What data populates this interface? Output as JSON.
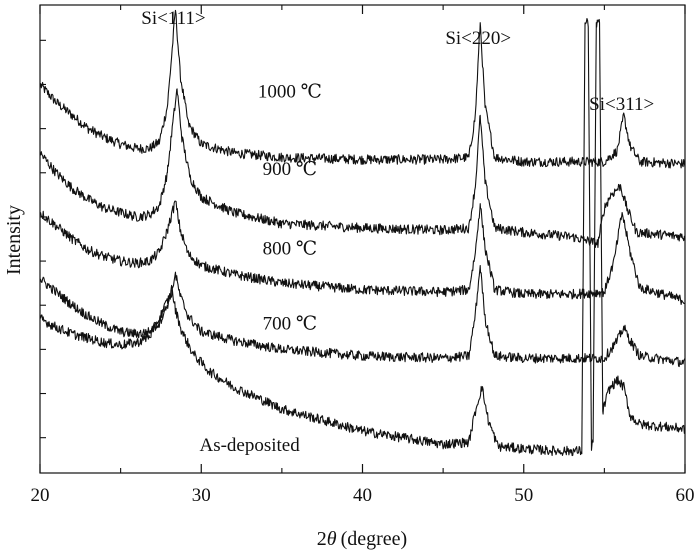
{
  "chart_data": {
    "type": "line",
    "xlabel": "2θ (degree)",
    "xlabel_prefix": "2",
    "xlabel_symbol": "θ",
    "xlabel_unit": "(degree)",
    "ylabel": "Intensity",
    "xlim": [
      20,
      60
    ],
    "xticks": [
      "20",
      "30",
      "40",
      "50",
      "60"
    ],
    "legend": "none",
    "grid": false,
    "annotations": [
      {
        "text": "Si<111>",
        "x": 28.4
      },
      {
        "text": "Si<220>",
        "x": 47.3
      },
      {
        "text": "Si<311>",
        "x": 56.2
      }
    ],
    "peak_positions": [
      28.4,
      47.3,
      56.2
    ],
    "series": [
      {
        "name": "1000 ℃",
        "x": [
          20,
          21,
          22,
          23,
          24,
          25,
          26,
          26.8,
          27.4,
          27.9,
          28.2,
          28.4,
          28.7,
          29.2,
          30,
          32,
          35,
          40,
          45,
          46.6,
          47.0,
          47.3,
          47.6,
          48.2,
          50,
          53,
          55,
          55.8,
          56.2,
          56.6,
          57.2,
          60
        ],
        "y": [
          10.6,
          10.2,
          9.9,
          9.6,
          9.4,
          9.25,
          9.15,
          9.15,
          9.3,
          10.1,
          11.4,
          12.3,
          10.8,
          9.7,
          9.25,
          9.05,
          8.95,
          8.9,
          8.9,
          8.95,
          9.9,
          12.0,
          10.1,
          8.95,
          8.85,
          8.85,
          8.85,
          9.1,
          9.9,
          9.2,
          8.85,
          8.8
        ]
      },
      {
        "name": "900 ℃",
        "x": [
          20,
          21,
          22,
          23,
          24,
          25,
          26,
          26.8,
          27.4,
          27.9,
          28.2,
          28.5,
          28.8,
          29.3,
          30,
          32,
          35,
          40,
          45,
          46.6,
          47.0,
          47.3,
          47.6,
          48.2,
          50,
          53,
          54.6,
          55.0,
          55.4,
          56.0,
          56.4,
          57.0,
          60
        ],
        "y": [
          9.05,
          8.6,
          8.25,
          8.0,
          7.8,
          7.7,
          7.6,
          7.65,
          7.85,
          8.6,
          9.6,
          10.5,
          9.4,
          8.5,
          8.05,
          7.7,
          7.45,
          7.35,
          7.3,
          7.35,
          8.3,
          9.9,
          8.4,
          7.35,
          7.25,
          7.15,
          7.0,
          7.8,
          8.1,
          8.3,
          7.8,
          7.25,
          7.15
        ]
      },
      {
        "name": "800 ℃",
        "x": [
          20,
          21,
          22,
          23,
          24,
          25,
          26,
          26.8,
          27.4,
          27.9,
          28.2,
          28.4,
          28.7,
          29.2,
          30,
          32,
          35,
          40,
          45,
          46.6,
          47.0,
          47.3,
          47.6,
          48.2,
          50,
          53,
          55,
          55.6,
          56.1,
          56.6,
          57.2,
          60
        ],
        "y": [
          7.7,
          7.4,
          7.1,
          6.85,
          6.7,
          6.6,
          6.55,
          6.6,
          6.8,
          7.3,
          7.7,
          7.95,
          7.3,
          6.75,
          6.5,
          6.3,
          6.1,
          5.95,
          5.9,
          5.95,
          6.8,
          7.9,
          6.9,
          5.95,
          5.85,
          5.85,
          5.9,
          6.6,
          7.7,
          6.8,
          6.0,
          5.7
        ]
      },
      {
        "name": "700 ℃",
        "x": [
          20,
          21,
          22,
          23,
          24,
          25,
          26,
          26.8,
          27.4,
          27.9,
          28.2,
          28.4,
          28.7,
          29.2,
          30,
          32,
          35,
          40,
          45,
          46.6,
          47.0,
          47.3,
          47.6,
          48.2,
          50,
          53,
          55,
          55.8,
          56.2,
          56.6,
          57.2,
          60
        ],
        "y": [
          6.2,
          5.9,
          5.6,
          5.35,
          5.15,
          5.0,
          4.95,
          5.0,
          5.2,
          5.6,
          6.0,
          6.3,
          5.8,
          5.35,
          5.0,
          4.8,
          4.6,
          4.45,
          4.4,
          4.45,
          5.4,
          6.5,
          5.3,
          4.45,
          4.4,
          4.4,
          4.4,
          4.8,
          5.1,
          4.8,
          4.45,
          4.3
        ]
      },
      {
        "name": "As-deposited",
        "x": [
          20,
          21,
          22,
          23,
          24,
          25,
          26,
          26.8,
          27.4,
          27.9,
          28.2,
          28.4,
          28.8,
          29.5,
          30.5,
          32,
          35,
          40,
          45,
          46.6,
          47.0,
          47.4,
          47.8,
          48.4,
          50,
          52,
          53.6,
          53.8,
          54.0,
          54.2,
          54.3,
          54.5,
          54.7,
          54.9,
          55.3,
          55.8,
          56.2,
          56.6,
          57.2,
          60
        ],
        "y": [
          5.3,
          5.1,
          4.95,
          4.85,
          4.75,
          4.7,
          4.75,
          4.9,
          5.3,
          5.7,
          5.9,
          5.5,
          5.0,
          4.5,
          4.1,
          3.75,
          3.25,
          2.75,
          2.45,
          2.5,
          3.2,
          3.75,
          3.0,
          2.4,
          2.35,
          2.3,
          2.3,
          12.0,
          12.0,
          2.3,
          2.5,
          12.0,
          12.0,
          3.2,
          3.7,
          3.9,
          3.75,
          3.1,
          2.9,
          2.8
        ]
      }
    ],
    "series_label_positions": [
      {
        "x": 35.5,
        "y": 10.3
      },
      {
        "x": 35.5,
        "y": 8.55
      },
      {
        "x": 35.5,
        "y": 6.75
      },
      {
        "x": 35.5,
        "y": 5.05
      },
      {
        "x": 33.0,
        "y": 2.3
      }
    ],
    "ylim": [
      1.8,
      12.4
    ],
    "y_minor_ticks": [
      2.6,
      3.6,
      4.6,
      5.6,
      6.6,
      7.6,
      8.6,
      9.6,
      10.6,
      11.6
    ]
  }
}
